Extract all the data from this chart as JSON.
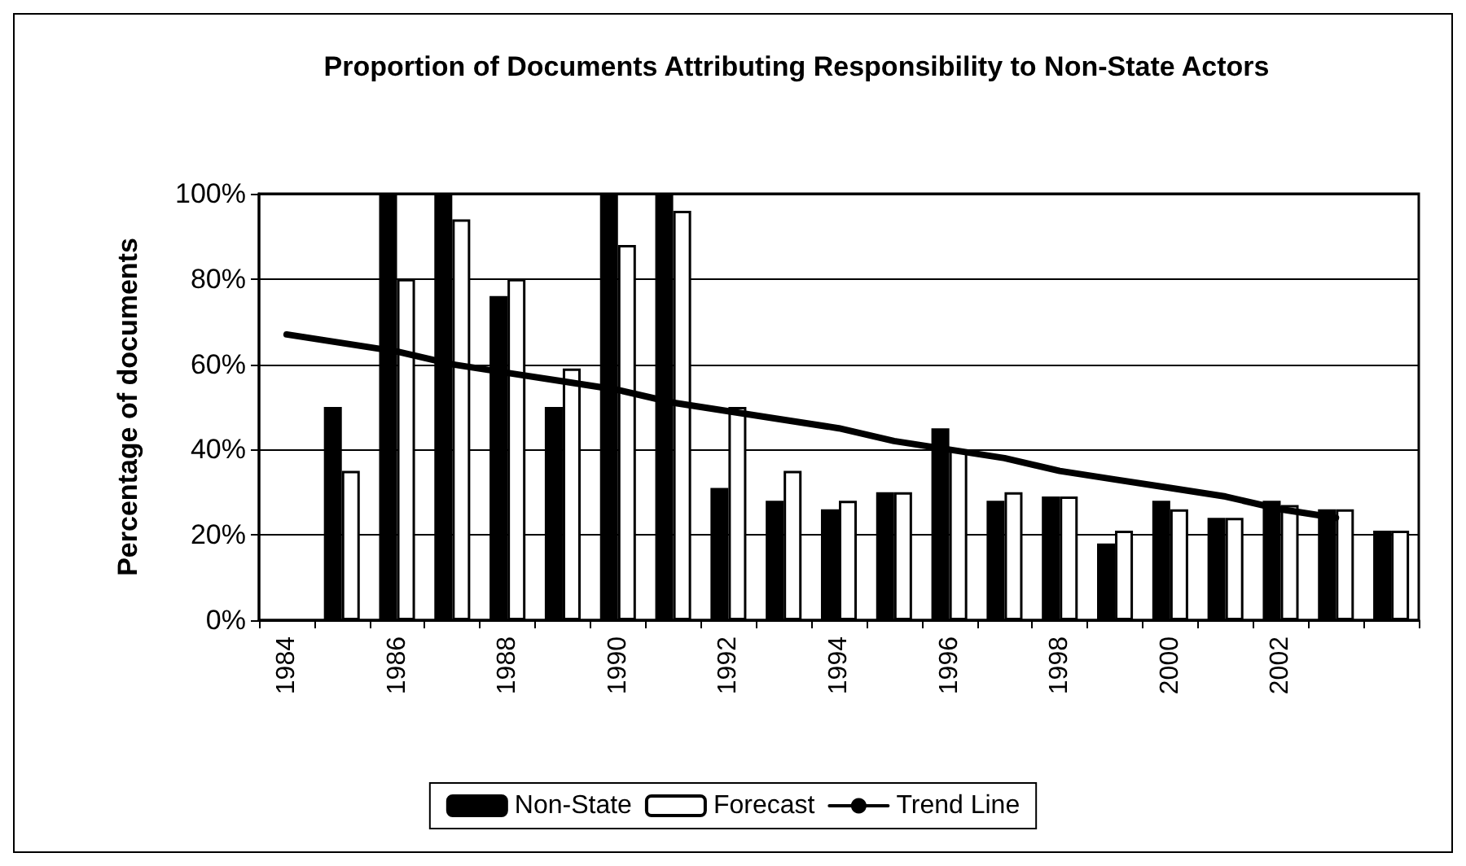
{
  "chart_data": {
    "type": "bar",
    "title": "Proportion of Documents Attributing Responsibility to Non-State Actors",
    "ylabel": "Percentage of documents",
    "categories": [
      "1984",
      null,
      "1986",
      null,
      "1988",
      null,
      "1990",
      null,
      "1992",
      null,
      "1994",
      null,
      "1996",
      null,
      "1998",
      null,
      "2000",
      null,
      "2002",
      null,
      null
    ],
    "series": [
      {
        "name": "Non-State",
        "color": "#000000",
        "values": [
          null,
          50,
          100,
          100,
          76,
          50,
          100,
          100,
          31,
          28,
          26,
          30,
          45,
          28,
          29,
          18,
          28,
          24,
          28,
          26,
          21
        ]
      },
      {
        "name": "Forecast",
        "color": "#ffffff",
        "values": [
          null,
          35,
          80,
          94,
          80,
          59,
          88,
          96,
          50,
          35,
          28,
          30,
          40,
          30,
          29,
          21,
          26,
          24,
          27,
          26,
          21
        ]
      },
      {
        "name": "Trend Line",
        "type": "line",
        "color": "#000000",
        "values": [
          67,
          65,
          63,
          60,
          58,
          56,
          54,
          51,
          49,
          47,
          45,
          42,
          40,
          38,
          35,
          33,
          31,
          29,
          26,
          24,
          null
        ]
      }
    ],
    "ylim": [
      0,
      100
    ],
    "yticks": [
      {
        "value": 0,
        "label": "0%"
      },
      {
        "value": 20,
        "label": "20%"
      },
      {
        "value": 40,
        "label": "40%"
      },
      {
        "value": 60,
        "label": "60%"
      },
      {
        "value": 80,
        "label": "80%"
      },
      {
        "value": 100,
        "label": "100%"
      }
    ],
    "grid": "y",
    "legend": "bottom",
    "marker": "none",
    "line_style": "solid"
  }
}
